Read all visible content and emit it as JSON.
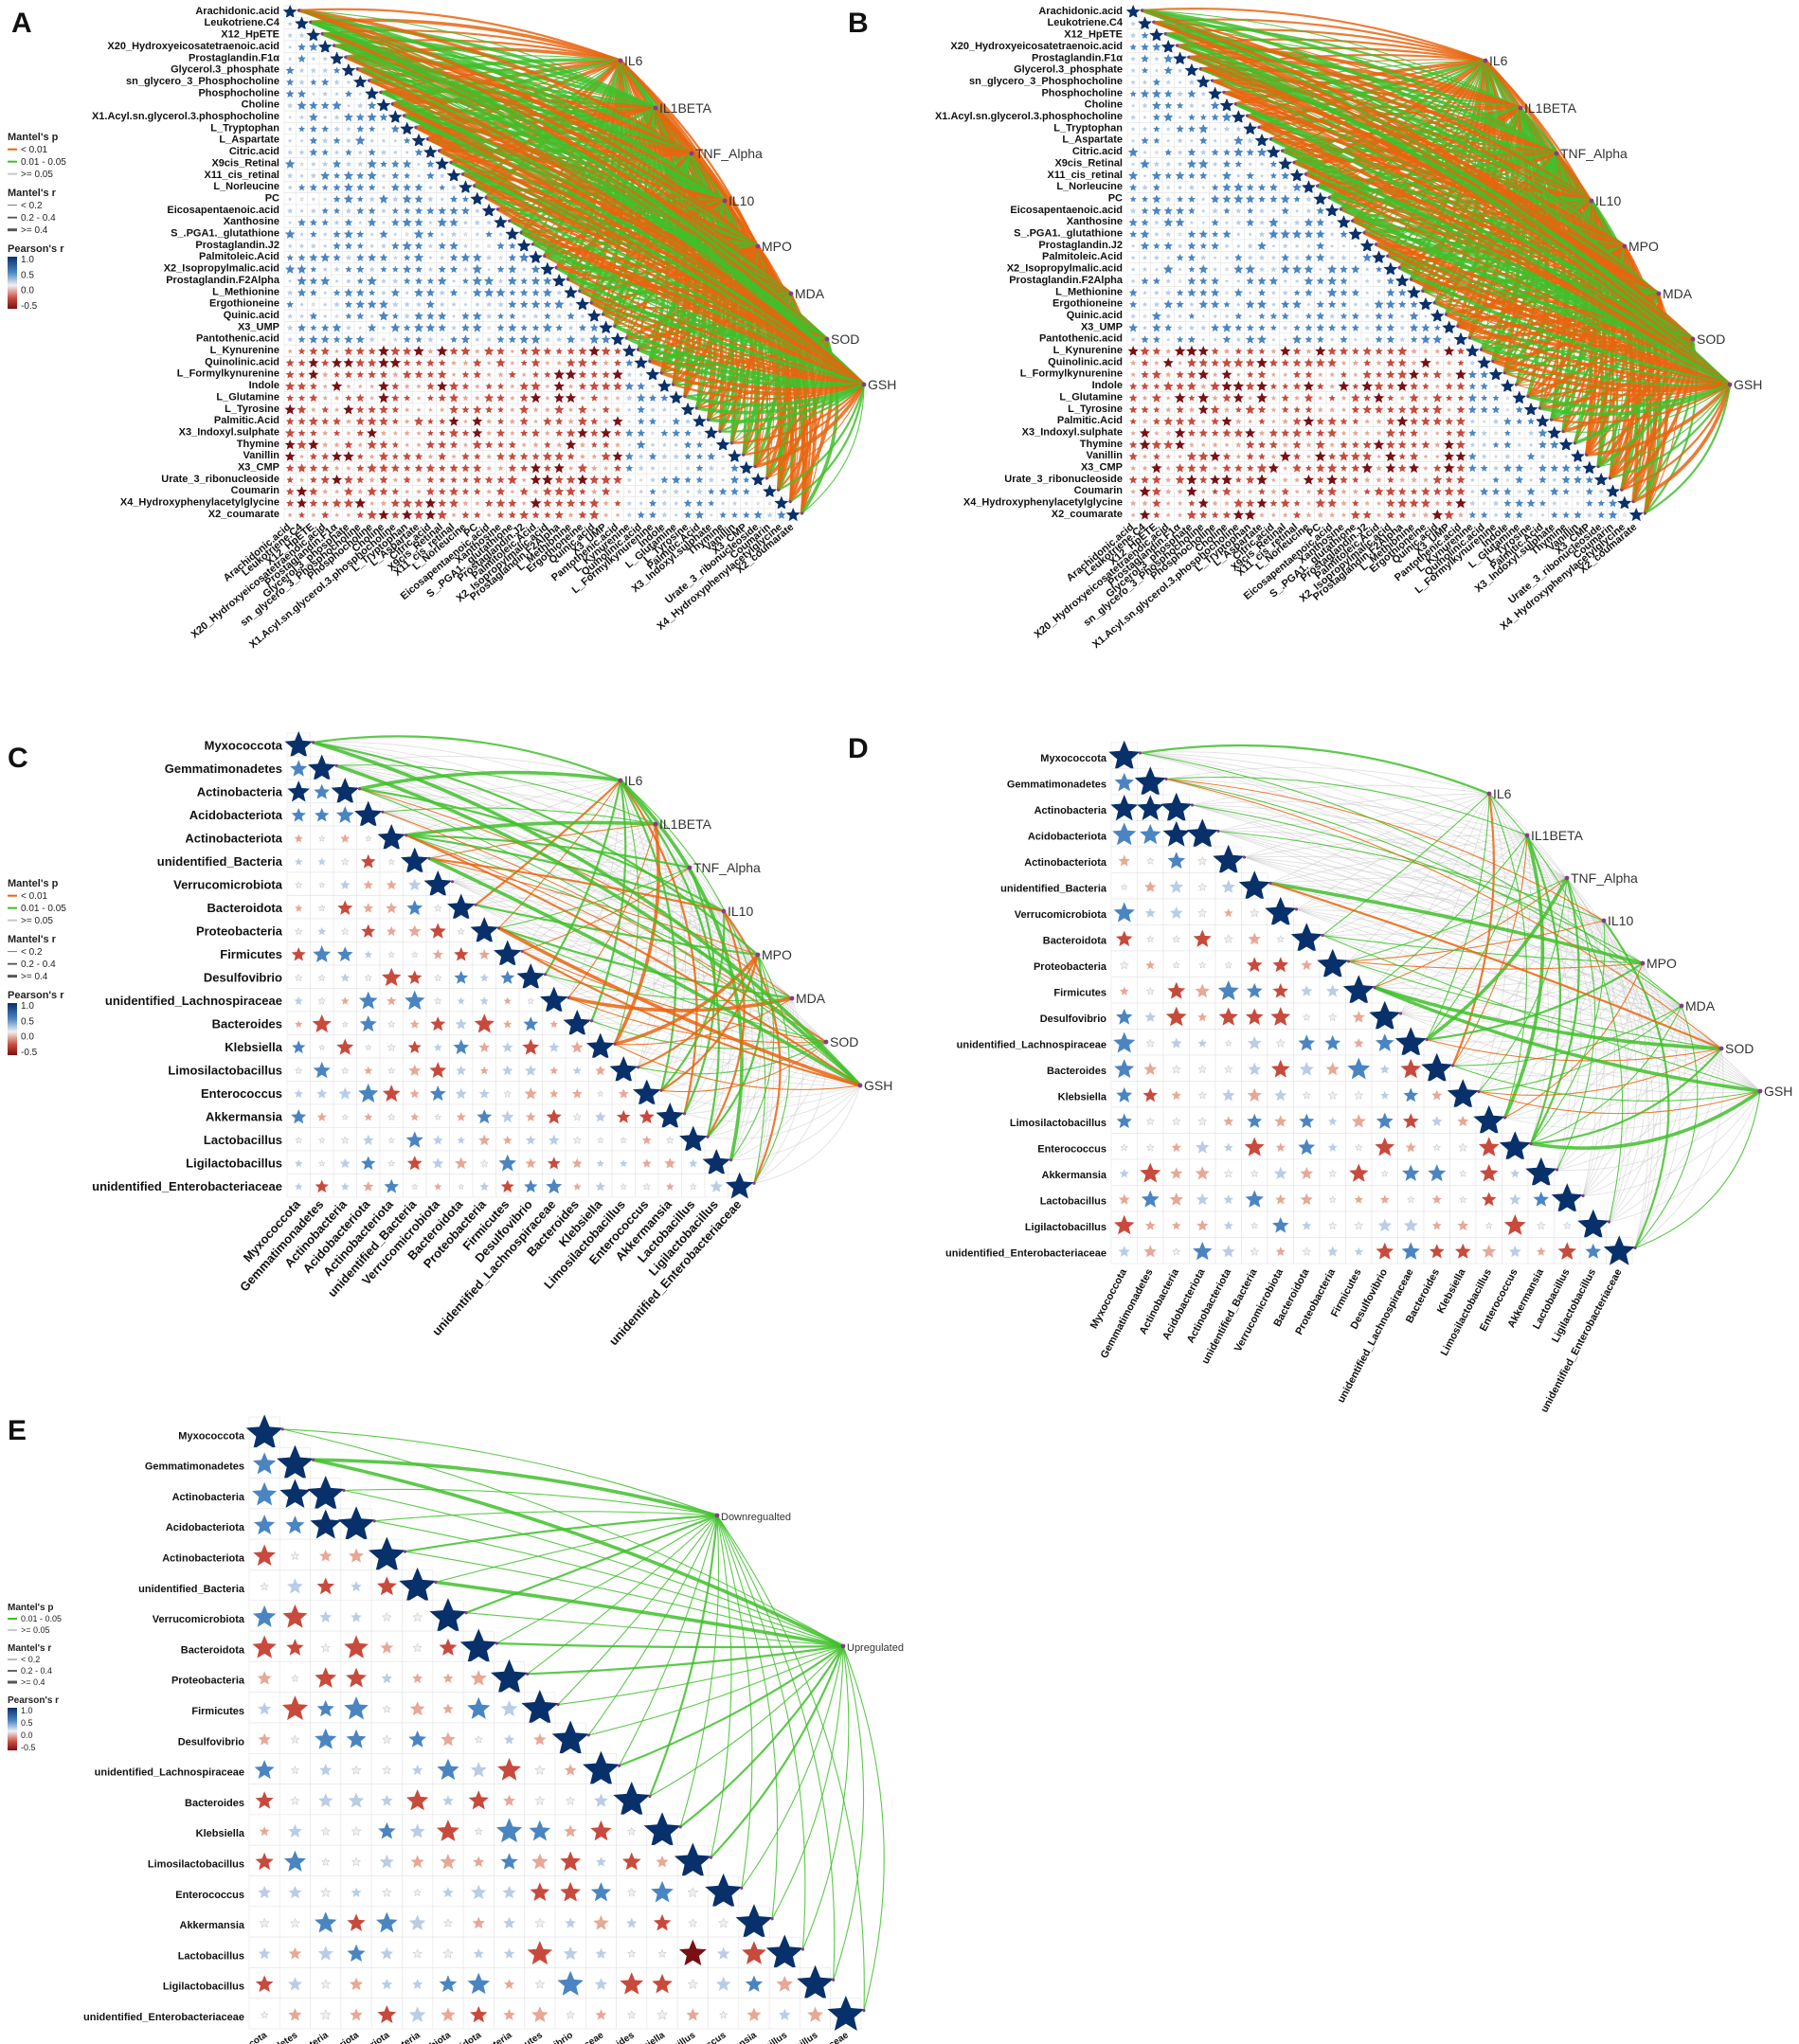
{
  "figure": {
    "panel_letters": [
      "A",
      "B",
      "C",
      "D",
      "E"
    ]
  },
  "colors": {
    "strong": "#08306b",
    "pos_mid": "#4a85c2",
    "pos_low": "#b9cde6",
    "neutral": "#f0f0f0",
    "neg_low": "#e7a896",
    "neg_mid": "#c84a3c",
    "neg_strong": "#7a0f14",
    "link_p_lt_001": "#e8650f",
    "link_p_001_005": "#3fbf2a",
    "link_p_ge_005": "#c9c9c9"
  },
  "legends": {
    "mantel_p": {
      "title": "Mantel's p",
      "items": [
        "< 0.01",
        "0.01 - 0.05",
        ">= 0.05"
      ]
    },
    "mantel_p_e": {
      "title": "Mantel's p",
      "items": [
        "0.01 - 0.05",
        ">= 0.05"
      ]
    },
    "mantel_r": {
      "title": "Mantel's r",
      "items": [
        "< 0.2",
        "0.2 - 0.4",
        ">= 0.4"
      ]
    },
    "pearson": {
      "title": "Pearson's r",
      "ticks": [
        "1.0",
        "0.5",
        "0.0",
        "-0.5"
      ]
    }
  },
  "metabolites": [
    "Arachidonic.acid",
    "Leukotriene.C4",
    "X12_HpETE",
    "X20_Hydroxyeicosatetraenoic.acid",
    "Prostaglandin.F1α",
    "Glycerol.3_phosphate",
    "sn_glycero_3_Phosphocholine",
    "Phosphocholine",
    "Choline",
    "X1.Acyl.sn.glycerol.3.phosphocholine",
    "L_Tryptophan",
    "L_Aspartate",
    "Citric.acid",
    "X9cis_Retinal",
    "X11_cis_retinal",
    "L_Norleucine",
    "PC",
    "Eicosapentaenoic.acid",
    "Xanthosine",
    "S_.PGA1._glutathione",
    "Prostaglandin.J2",
    "Palmitoleic.Acid",
    "X2_Isopropylmalic.acid",
    "Prostaglandin.F2Alpha",
    "L_Methionine",
    "Ergothioneine",
    "Quinic.acid",
    "X3_UMP",
    "Pantothenic.acid",
    "L_Kynurenine",
    "Quinolinic.acid",
    "L_Formylkynurenine",
    "Indole",
    "L_Glutamine",
    "L_Tyrosine",
    "Palmitic.Acid",
    "X3_Indoxyl.sulphate",
    "Thymine",
    "Vanillin",
    "X3_CMP",
    "Urate_3_ribonucleoside",
    "Coumarin",
    "X4_Hydroxyphenylacetylglycine",
    "X2_coumarate"
  ],
  "bacteria": [
    "Myxococcota",
    "Gemmatimonadetes",
    "Actinobacteria",
    "Acidobacteriota",
    "Actinobacteriota",
    "unidentified_Bacteria",
    "Verrucomicrobiota",
    "Bacteroidota",
    "Proteobacteria",
    "Firmicutes",
    "Desulfovibrio",
    "unidentified_Lachnospiraceae",
    "Bacteroides",
    "Klebsiella",
    "Limosilactobacillus",
    "Enterococcus",
    "Akkermansia",
    "Lactobacillus",
    "Ligilactobacillus",
    "unidentified_Enterobacteriaceae"
  ],
  "targets": [
    "IL6",
    "IL1BETA",
    "TNF_Alpha",
    "IL10",
    "MPO",
    "MDA",
    "SOD",
    "GSH"
  ],
  "targets_e": [
    "Downregualted",
    "Upregulated"
  ],
  "chart_data": [
    {
      "panel": "A",
      "type": "heatmap",
      "rows": "metabolites",
      "env_targets": "targets",
      "link_p_mix": [
        0.5,
        0.45,
        0.05
      ],
      "link_r_mix": [
        0.2,
        0.35,
        0.45
      ]
    },
    {
      "panel": "B",
      "type": "heatmap",
      "rows": "metabolites",
      "env_targets": "targets",
      "link_p_mix": [
        0.5,
        0.45,
        0.05
      ],
      "link_r_mix": [
        0.2,
        0.35,
        0.45
      ]
    },
    {
      "panel": "C",
      "type": "heatmap",
      "rows": "bacteria",
      "env_targets": "targets",
      "link_p_mix": [
        0.2,
        0.2,
        0.6
      ],
      "link_r_mix": [
        0.5,
        0.35,
        0.15
      ]
    },
    {
      "panel": "D",
      "type": "heatmap",
      "rows": "bacteria",
      "env_targets": "targets",
      "link_p_mix": [
        0.08,
        0.22,
        0.7
      ],
      "link_r_mix": [
        0.6,
        0.3,
        0.1
      ]
    },
    {
      "panel": "E",
      "type": "heatmap",
      "rows": "bacteria",
      "env_targets": "targets_e",
      "link_p_mix": [
        0.02,
        0.98,
        0.0
      ],
      "link_r_mix": [
        0.7,
        0.25,
        0.05
      ]
    }
  ]
}
